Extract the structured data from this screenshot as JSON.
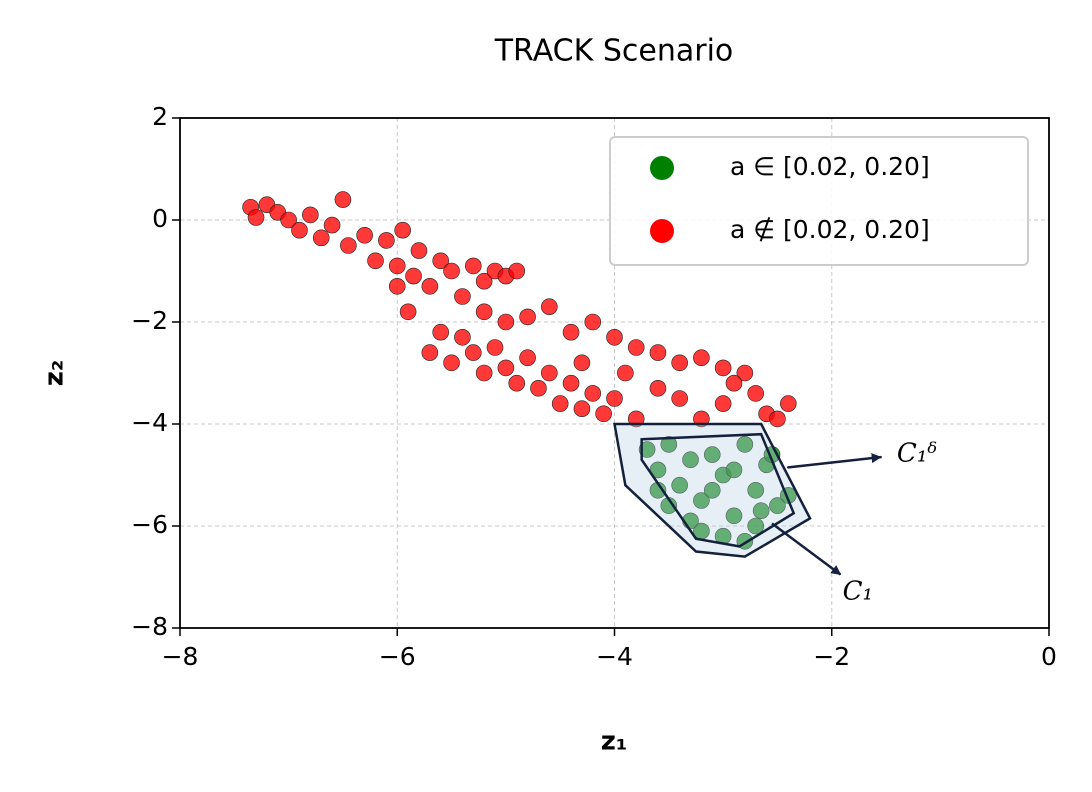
{
  "chart_data": {
    "type": "scatter",
    "title": "TRACK Scenario",
    "x_label": "z₁",
    "y_label": "z₂",
    "xlim": [
      -8,
      0
    ],
    "ylim": [
      -8,
      2
    ],
    "xticks": [
      {
        "value": -8,
        "label": "−8"
      },
      {
        "value": -6,
        "label": "−6"
      },
      {
        "value": -4,
        "label": "−4"
      },
      {
        "value": -2,
        "label": "−2"
      },
      0
    ],
    "yticks": [
      2,
      0,
      {
        "value": -2,
        "label": "−2"
      },
      {
        "value": -4,
        "label": "−4"
      },
      {
        "value": -6,
        "label": "−6"
      },
      {
        "value": -8,
        "label": "−8"
      }
    ],
    "grid": true,
    "legend": "upper right",
    "series": [
      {
        "name": "a ∈ [0.02, 0.20]",
        "color": "#008000",
        "x": [
          -3.7,
          -3.6,
          -3.5,
          -3.4,
          -3.3,
          -3.2,
          -3.1,
          -3.0,
          -2.9,
          -2.8,
          -2.7,
          -2.6,
          -2.5,
          -2.4,
          -3.5,
          -3.2,
          -3.0,
          -2.8,
          -2.7,
          -3.3,
          -2.9,
          -3.6,
          -3.1,
          -2.65,
          -2.55
        ],
        "values": [
          -4.5,
          -4.9,
          -4.4,
          -5.2,
          -4.7,
          -5.5,
          -4.6,
          -5.0,
          -5.8,
          -4.4,
          -5.3,
          -4.8,
          -5.6,
          -5.4,
          -5.6,
          -6.1,
          -6.2,
          -6.3,
          -6.0,
          -5.9,
          -4.9,
          -5.3,
          -5.3,
          -5.7,
          -4.6
        ]
      },
      {
        "name": "a ∉ [0.02, 0.20]",
        "color": "#ff0000",
        "x": [
          -7.35,
          -7.3,
          -7.2,
          -7.1,
          -7.0,
          -6.9,
          -6.8,
          -6.7,
          -6.6,
          -6.5,
          -6.45,
          -6.3,
          -6.2,
          -6.1,
          -6.0,
          -5.95,
          -5.85,
          -5.8,
          -5.7,
          -5.6,
          -5.5,
          -5.4,
          -5.3,
          -5.2,
          -5.1,
          -5.0,
          -4.9,
          -5.7,
          -5.6,
          -5.5,
          -5.4,
          -5.3,
          -5.2,
          -5.1,
          -5.0,
          -4.9,
          -4.8,
          -4.7,
          -4.6,
          -4.5,
          -4.4,
          -4.3,
          -4.2,
          -4.1,
          -4.0,
          -5.2,
          -5.0,
          -4.8,
          -4.6,
          -4.4,
          -4.2,
          -4.0,
          -3.8,
          -3.6,
          -3.4,
          -3.2,
          -3.0,
          -2.8,
          -3.6,
          -3.4,
          -3.2,
          -3.0,
          -2.9,
          -2.7,
          -2.6,
          -2.4,
          -2.5,
          -3.8,
          -3.9,
          -4.3,
          -6.0,
          -5.9
        ],
        "values": [
          0.25,
          0.05,
          0.3,
          0.15,
          0.0,
          -0.2,
          0.1,
          -0.35,
          -0.1,
          0.4,
          -0.5,
          -0.3,
          -0.8,
          -0.4,
          -0.9,
          -0.2,
          -1.1,
          -0.6,
          -1.3,
          -0.8,
          -1.0,
          -1.5,
          -0.9,
          -1.2,
          -1.0,
          -1.1,
          -1.0,
          -2.6,
          -2.2,
          -2.8,
          -2.3,
          -2.6,
          -3.0,
          -2.5,
          -2.9,
          -3.2,
          -2.7,
          -3.3,
          -3.0,
          -3.6,
          -3.2,
          -3.7,
          -3.4,
          -3.8,
          -3.5,
          -1.8,
          -2.0,
          -1.9,
          -1.7,
          -2.2,
          -2.0,
          -2.3,
          -2.5,
          -2.6,
          -2.8,
          -2.7,
          -2.9,
          -3.0,
          -3.3,
          -3.5,
          -3.9,
          -3.6,
          -3.2,
          -3.4,
          -3.8,
          -3.6,
          -3.9,
          -3.9,
          -3.0,
          -2.8,
          -1.3,
          -1.8
        ]
      }
    ],
    "hulls": [
      {
        "label": "C₁ᵟ",
        "x": [
          -4.0,
          -2.65,
          -2.2,
          -2.8,
          -3.25,
          -3.9
        ],
        "values": [
          -4.0,
          -4.0,
          -5.85,
          -6.6,
          -6.5,
          -5.2
        ]
      },
      {
        "label": "C₁",
        "x": [
          -3.75,
          -2.65,
          -2.35,
          -2.85,
          -3.25,
          -3.75
        ],
        "values": [
          -4.3,
          -4.2,
          -5.75,
          -6.4,
          -6.25,
          -4.7
        ]
      }
    ]
  }
}
